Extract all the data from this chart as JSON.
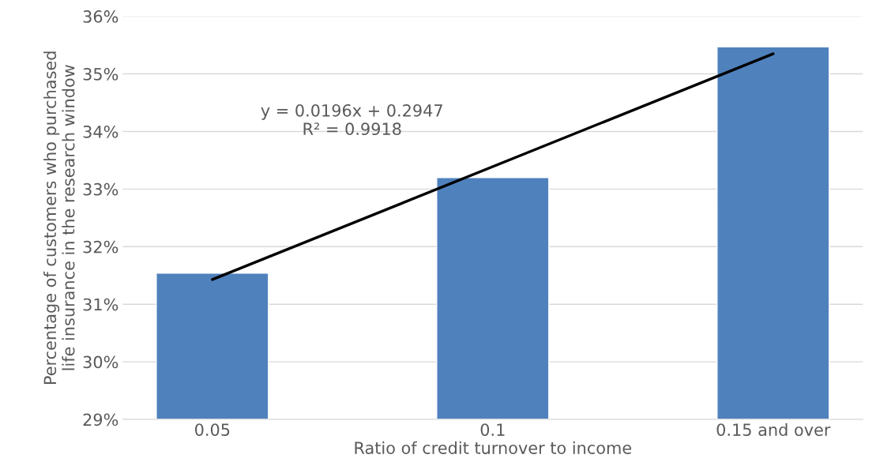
{
  "chart_data": {
    "type": "bar",
    "xlabel": "Ratio of credit turnover to income",
    "ylabel": "Percentage of customers who purchased life insurance in the research window",
    "categories": [
      "0.05",
      "0.1",
      "0.15 and over"
    ],
    "series": [
      {
        "color": "#4f81bd",
        "values": [
          31.54,
          33.2,
          35.47
        ]
      },
      {
        "type": "line",
        "color": "#000000",
        "x": [
          "0.05",
          "0.15 and over"
        ],
        "values": [
          31.43,
          35.35
        ]
      }
    ],
    "annotations": [
      "y = 0.0196x + 0.2947\nR² = 0.9918"
    ],
    "ylim": [
      29,
      36
    ],
    "yticks": [
      {
        "value": 29,
        "label": "29%"
      },
      {
        "value": 30,
        "label": "30%"
      },
      {
        "value": 31,
        "label": "31%"
      },
      {
        "value": 32,
        "label": "32%"
      },
      {
        "value": 33,
        "label": "33%"
      },
      {
        "value": 34,
        "label": "34%"
      },
      {
        "value": 35,
        "label": "35%"
      },
      {
        "value": 36,
        "label": "36%"
      }
    ],
    "grid": "y",
    "legend": false
  }
}
